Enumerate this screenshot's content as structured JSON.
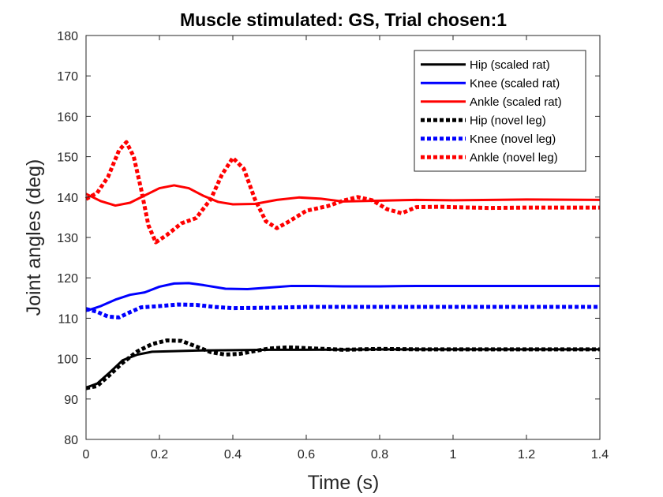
{
  "chart_data": {
    "type": "line",
    "title": "Muscle stimulated: GS, Trial chosen:1",
    "xlabel": "Time (s)",
    "ylabel": "Joint angles (deg)",
    "xlim": [
      0,
      1.4
    ],
    "ylim": [
      80,
      180
    ],
    "xticks": [
      0,
      0.2,
      0.4,
      0.6,
      0.8,
      1,
      1.2,
      1.4
    ],
    "xtick_labels": [
      "0",
      "0.2",
      "0.4",
      "0.6",
      "0.8",
      "1",
      "1.2",
      "1.4"
    ],
    "yticks": [
      80,
      90,
      100,
      110,
      120,
      130,
      140,
      150,
      160,
      170,
      180
    ],
    "ytick_labels": [
      "80",
      "90",
      "100",
      "110",
      "120",
      "130",
      "140",
      "150",
      "160",
      "170",
      "180"
    ],
    "grid": false,
    "legend_position": "top-right",
    "series": [
      {
        "name": "Hip (scaled rat)",
        "color": "#000000",
        "style": "solid",
        "x": [
          0,
          0.03,
          0.06,
          0.1,
          0.14,
          0.18,
          0.22,
          0.3,
          0.4,
          0.5,
          0.6,
          0.8,
          1.0,
          1.2,
          1.4
        ],
        "y": [
          92.8,
          93.8,
          96.2,
          99.6,
          101.0,
          101.7,
          101.8,
          102.0,
          102.1,
          102.2,
          102.2,
          102.3,
          102.3,
          102.3,
          102.3
        ]
      },
      {
        "name": "Knee (scaled rat)",
        "color": "#0000ff",
        "style": "solid",
        "x": [
          0,
          0.04,
          0.08,
          0.12,
          0.16,
          0.2,
          0.24,
          0.28,
          0.32,
          0.38,
          0.44,
          0.5,
          0.56,
          0.62,
          0.7,
          0.8,
          0.9,
          1.0,
          1.2,
          1.4
        ],
        "y": [
          111.8,
          113.0,
          114.6,
          115.8,
          116.4,
          117.8,
          118.6,
          118.7,
          118.2,
          117.3,
          117.2,
          117.6,
          118.0,
          118.0,
          117.9,
          117.9,
          118.0,
          118.0,
          118.0,
          118.0
        ]
      },
      {
        "name": "Ankle (scaled rat)",
        "color": "#ff0000",
        "style": "solid",
        "x": [
          0,
          0.04,
          0.08,
          0.12,
          0.16,
          0.2,
          0.24,
          0.28,
          0.32,
          0.36,
          0.4,
          0.46,
          0.52,
          0.58,
          0.64,
          0.7,
          0.8,
          0.9,
          1.0,
          1.2,
          1.4
        ],
        "y": [
          140.8,
          139.0,
          137.9,
          138.6,
          140.4,
          142.2,
          142.9,
          142.2,
          140.3,
          138.8,
          138.2,
          138.3,
          139.3,
          139.9,
          139.6,
          138.9,
          139.1,
          139.3,
          139.2,
          139.4,
          139.3
        ]
      },
      {
        "name": "Hip (novel leg)",
        "color": "#000000",
        "style": "dashed",
        "x": [
          0,
          0.03,
          0.06,
          0.1,
          0.14,
          0.18,
          0.22,
          0.26,
          0.3,
          0.34,
          0.38,
          0.42,
          0.46,
          0.5,
          0.55,
          0.6,
          0.7,
          0.8,
          0.9,
          1.0,
          1.2,
          1.4
        ],
        "y": [
          92.7,
          93.2,
          95.6,
          99.0,
          101.8,
          103.6,
          104.5,
          104.4,
          103.0,
          101.6,
          101.0,
          101.2,
          101.9,
          102.5,
          102.8,
          102.6,
          102.2,
          102.4,
          102.3,
          102.3,
          102.3,
          102.3
        ]
      },
      {
        "name": "Knee (novel leg)",
        "color": "#0000ff",
        "style": "dashed",
        "x": [
          0,
          0.03,
          0.06,
          0.09,
          0.12,
          0.15,
          0.2,
          0.25,
          0.3,
          0.35,
          0.4,
          0.5,
          0.6,
          0.8,
          1.0,
          1.2,
          1.4
        ],
        "y": [
          112.3,
          111.6,
          110.4,
          110.2,
          111.5,
          112.7,
          113.0,
          113.4,
          113.3,
          112.8,
          112.5,
          112.6,
          112.8,
          112.8,
          112.8,
          112.8,
          112.8
        ]
      },
      {
        "name": "Ankle (novel leg)",
        "color": "#ff0000",
        "style": "dashed",
        "x": [
          0,
          0.03,
          0.06,
          0.09,
          0.11,
          0.13,
          0.15,
          0.17,
          0.19,
          0.22,
          0.26,
          0.3,
          0.34,
          0.37,
          0.4,
          0.43,
          0.46,
          0.49,
          0.52,
          0.55,
          0.6,
          0.66,
          0.7,
          0.74,
          0.78,
          0.82,
          0.86,
          0.9,
          0.96,
          1.0,
          1.1,
          1.2,
          1.4
        ],
        "y": [
          139.5,
          141.0,
          145.0,
          151.6,
          153.6,
          150.0,
          142.0,
          133.0,
          128.8,
          130.6,
          133.5,
          134.8,
          139.5,
          145.5,
          149.7,
          147.0,
          139.5,
          134.0,
          132.3,
          133.8,
          136.6,
          137.8,
          139.1,
          140.0,
          139.2,
          137.0,
          136.0,
          137.5,
          137.6,
          137.5,
          137.3,
          137.4,
          137.4
        ]
      }
    ]
  }
}
